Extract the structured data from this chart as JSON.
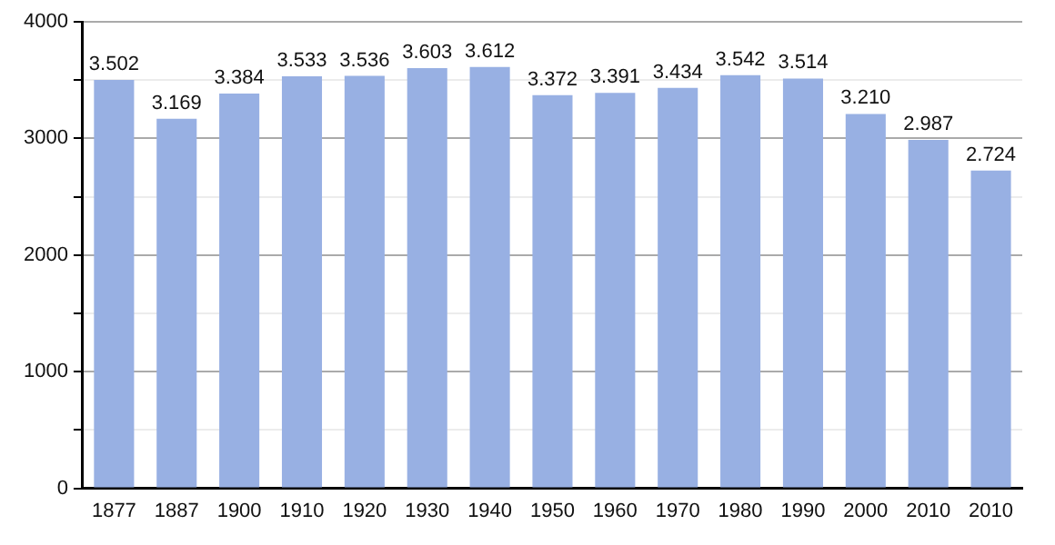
{
  "chart_data": {
    "type": "bar",
    "categories": [
      "1877",
      "1887",
      "1900",
      "1910",
      "1920",
      "1930",
      "1940",
      "1950",
      "1960",
      "1970",
      "1980",
      "1990",
      "2000",
      "2010",
      "2010"
    ],
    "values": [
      3502,
      3169,
      3384,
      3533,
      3536,
      3603,
      3612,
      3372,
      3391,
      3434,
      3542,
      3514,
      3210,
      2987,
      2724
    ],
    "value_labels": [
      "3.502",
      "3.169",
      "3.384",
      "3.533",
      "3.536",
      "3.603",
      "3.612",
      "3.372",
      "3.391",
      "3.434",
      "3.542",
      "3.514",
      "3.210",
      "2.987",
      "2.724"
    ],
    "color": "#98b0e3",
    "ylim": [
      0,
      4000
    ],
    "yticks": [
      0,
      {
        "value": 500,
        "label": null
      },
      1000,
      {
        "value": 1500,
        "label": null
      },
      2000,
      {
        "value": 2500,
        "label": null
      },
      3000,
      {
        "value": 3500,
        "label": null
      },
      4000
    ],
    "grid": "y",
    "legend": false
  }
}
